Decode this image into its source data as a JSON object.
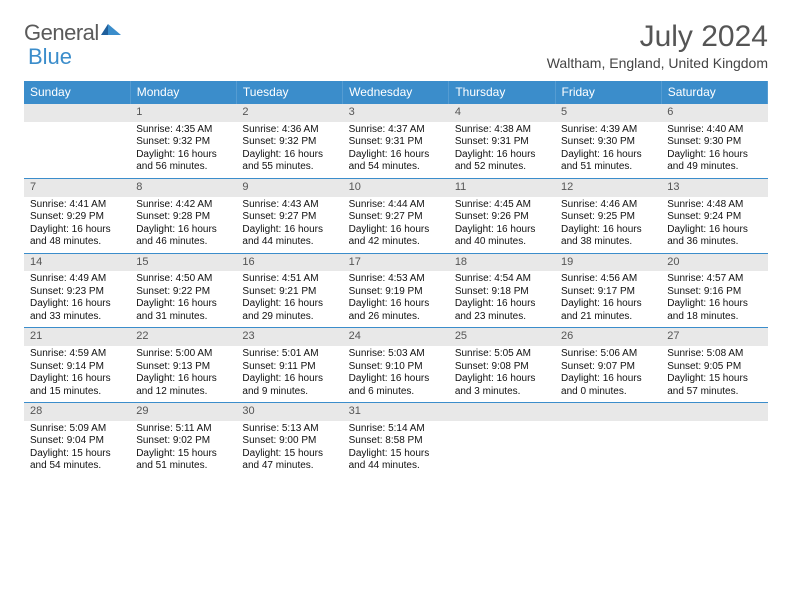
{
  "brand": {
    "part1": "General",
    "part2": "Blue"
  },
  "title": "July 2024",
  "location": "Waltham, England, United Kingdom",
  "colors": {
    "header_bg": "#3b8dcb",
    "header_text": "#ffffff",
    "daynum_bg": "#e8e8e8",
    "daynum_text": "#555555",
    "row_divider": "#3b8dcb",
    "body_text": "#111111",
    "page_bg": "#ffffff",
    "logo_gray": "#5a5a5a",
    "logo_blue": "#3b8dcb"
  },
  "typography": {
    "title_fontsize": 30,
    "location_fontsize": 14,
    "weekday_fontsize": 12,
    "daynum_fontsize": 11,
    "cell_fontsize": 10,
    "font_family": "Arial"
  },
  "layout": {
    "type": "calendar",
    "columns": 7,
    "weeks": 5,
    "start_weekday": "Sunday"
  },
  "weekdays": [
    "Sunday",
    "Monday",
    "Tuesday",
    "Wednesday",
    "Thursday",
    "Friday",
    "Saturday"
  ],
  "weeks": [
    [
      null,
      {
        "n": "1",
        "sr": "Sunrise: 4:35 AM",
        "ss": "Sunset: 9:32 PM",
        "d1": "Daylight: 16 hours",
        "d2": "and 56 minutes."
      },
      {
        "n": "2",
        "sr": "Sunrise: 4:36 AM",
        "ss": "Sunset: 9:32 PM",
        "d1": "Daylight: 16 hours",
        "d2": "and 55 minutes."
      },
      {
        "n": "3",
        "sr": "Sunrise: 4:37 AM",
        "ss": "Sunset: 9:31 PM",
        "d1": "Daylight: 16 hours",
        "d2": "and 54 minutes."
      },
      {
        "n": "4",
        "sr": "Sunrise: 4:38 AM",
        "ss": "Sunset: 9:31 PM",
        "d1": "Daylight: 16 hours",
        "d2": "and 52 minutes."
      },
      {
        "n": "5",
        "sr": "Sunrise: 4:39 AM",
        "ss": "Sunset: 9:30 PM",
        "d1": "Daylight: 16 hours",
        "d2": "and 51 minutes."
      },
      {
        "n": "6",
        "sr": "Sunrise: 4:40 AM",
        "ss": "Sunset: 9:30 PM",
        "d1": "Daylight: 16 hours",
        "d2": "and 49 minutes."
      }
    ],
    [
      {
        "n": "7",
        "sr": "Sunrise: 4:41 AM",
        "ss": "Sunset: 9:29 PM",
        "d1": "Daylight: 16 hours",
        "d2": "and 48 minutes."
      },
      {
        "n": "8",
        "sr": "Sunrise: 4:42 AM",
        "ss": "Sunset: 9:28 PM",
        "d1": "Daylight: 16 hours",
        "d2": "and 46 minutes."
      },
      {
        "n": "9",
        "sr": "Sunrise: 4:43 AM",
        "ss": "Sunset: 9:27 PM",
        "d1": "Daylight: 16 hours",
        "d2": "and 44 minutes."
      },
      {
        "n": "10",
        "sr": "Sunrise: 4:44 AM",
        "ss": "Sunset: 9:27 PM",
        "d1": "Daylight: 16 hours",
        "d2": "and 42 minutes."
      },
      {
        "n": "11",
        "sr": "Sunrise: 4:45 AM",
        "ss": "Sunset: 9:26 PM",
        "d1": "Daylight: 16 hours",
        "d2": "and 40 minutes."
      },
      {
        "n": "12",
        "sr": "Sunrise: 4:46 AM",
        "ss": "Sunset: 9:25 PM",
        "d1": "Daylight: 16 hours",
        "d2": "and 38 minutes."
      },
      {
        "n": "13",
        "sr": "Sunrise: 4:48 AM",
        "ss": "Sunset: 9:24 PM",
        "d1": "Daylight: 16 hours",
        "d2": "and 36 minutes."
      }
    ],
    [
      {
        "n": "14",
        "sr": "Sunrise: 4:49 AM",
        "ss": "Sunset: 9:23 PM",
        "d1": "Daylight: 16 hours",
        "d2": "and 33 minutes."
      },
      {
        "n": "15",
        "sr": "Sunrise: 4:50 AM",
        "ss": "Sunset: 9:22 PM",
        "d1": "Daylight: 16 hours",
        "d2": "and 31 minutes."
      },
      {
        "n": "16",
        "sr": "Sunrise: 4:51 AM",
        "ss": "Sunset: 9:21 PM",
        "d1": "Daylight: 16 hours",
        "d2": "and 29 minutes."
      },
      {
        "n": "17",
        "sr": "Sunrise: 4:53 AM",
        "ss": "Sunset: 9:19 PM",
        "d1": "Daylight: 16 hours",
        "d2": "and 26 minutes."
      },
      {
        "n": "18",
        "sr": "Sunrise: 4:54 AM",
        "ss": "Sunset: 9:18 PM",
        "d1": "Daylight: 16 hours",
        "d2": "and 23 minutes."
      },
      {
        "n": "19",
        "sr": "Sunrise: 4:56 AM",
        "ss": "Sunset: 9:17 PM",
        "d1": "Daylight: 16 hours",
        "d2": "and 21 minutes."
      },
      {
        "n": "20",
        "sr": "Sunrise: 4:57 AM",
        "ss": "Sunset: 9:16 PM",
        "d1": "Daylight: 16 hours",
        "d2": "and 18 minutes."
      }
    ],
    [
      {
        "n": "21",
        "sr": "Sunrise: 4:59 AM",
        "ss": "Sunset: 9:14 PM",
        "d1": "Daylight: 16 hours",
        "d2": "and 15 minutes."
      },
      {
        "n": "22",
        "sr": "Sunrise: 5:00 AM",
        "ss": "Sunset: 9:13 PM",
        "d1": "Daylight: 16 hours",
        "d2": "and 12 minutes."
      },
      {
        "n": "23",
        "sr": "Sunrise: 5:01 AM",
        "ss": "Sunset: 9:11 PM",
        "d1": "Daylight: 16 hours",
        "d2": "and 9 minutes."
      },
      {
        "n": "24",
        "sr": "Sunrise: 5:03 AM",
        "ss": "Sunset: 9:10 PM",
        "d1": "Daylight: 16 hours",
        "d2": "and 6 minutes."
      },
      {
        "n": "25",
        "sr": "Sunrise: 5:05 AM",
        "ss": "Sunset: 9:08 PM",
        "d1": "Daylight: 16 hours",
        "d2": "and 3 minutes."
      },
      {
        "n": "26",
        "sr": "Sunrise: 5:06 AM",
        "ss": "Sunset: 9:07 PM",
        "d1": "Daylight: 16 hours",
        "d2": "and 0 minutes."
      },
      {
        "n": "27",
        "sr": "Sunrise: 5:08 AM",
        "ss": "Sunset: 9:05 PM",
        "d1": "Daylight: 15 hours",
        "d2": "and 57 minutes."
      }
    ],
    [
      {
        "n": "28",
        "sr": "Sunrise: 5:09 AM",
        "ss": "Sunset: 9:04 PM",
        "d1": "Daylight: 15 hours",
        "d2": "and 54 minutes."
      },
      {
        "n": "29",
        "sr": "Sunrise: 5:11 AM",
        "ss": "Sunset: 9:02 PM",
        "d1": "Daylight: 15 hours",
        "d2": "and 51 minutes."
      },
      {
        "n": "30",
        "sr": "Sunrise: 5:13 AM",
        "ss": "Sunset: 9:00 PM",
        "d1": "Daylight: 15 hours",
        "d2": "and 47 minutes."
      },
      {
        "n": "31",
        "sr": "Sunrise: 5:14 AM",
        "ss": "Sunset: 8:58 PM",
        "d1": "Daylight: 15 hours",
        "d2": "and 44 minutes."
      },
      null,
      null,
      null
    ]
  ]
}
